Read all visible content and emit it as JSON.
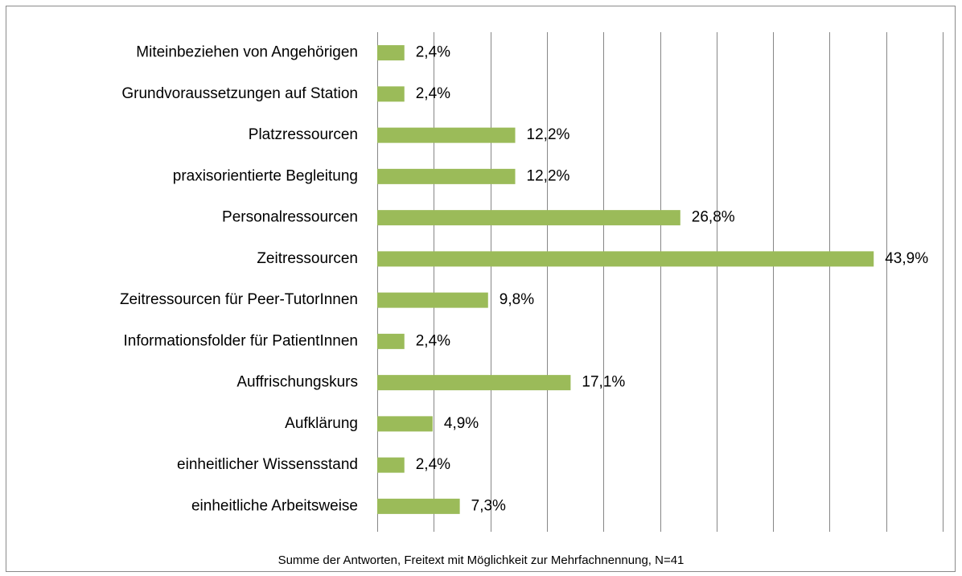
{
  "chart_data": {
    "type": "barh",
    "footnote": "Summe der Antworten, Freitext mit Möglichkeit zur Mehrfachnennung, N=41",
    "categories": [
      "Miteinbeziehen von Angehörigen",
      "Grundvoraussetzungen auf Station",
      "Platzressourcen",
      "praxisorientierte Begleitung",
      "Personalressourcen",
      "Zeitressourcen",
      "Zeitressourcen für Peer-TutorInnen",
      "Informationsfolder für PatientInnen",
      "Auffrischungskurs",
      "Aufklärung",
      "einheitlicher Wissensstand",
      "einheitliche Arbeitsweise"
    ],
    "values": [
      2.4,
      2.4,
      12.2,
      12.2,
      26.8,
      43.9,
      9.8,
      2.4,
      17.1,
      4.9,
      2.4,
      7.3
    ],
    "value_labels": [
      "2,4%",
      "2,4%",
      "12,2%",
      "12,2%",
      "26,8%",
      "43,9%",
      "9,8%",
      "2,4%",
      "17,1%",
      "4,9%",
      "2,4%",
      "7,3%"
    ],
    "color": "#9bbb59",
    "xlim": [
      0,
      50
    ],
    "xticks": [
      0,
      5,
      10,
      15,
      20,
      25,
      30,
      35,
      40,
      45,
      50
    ],
    "grid": true
  }
}
